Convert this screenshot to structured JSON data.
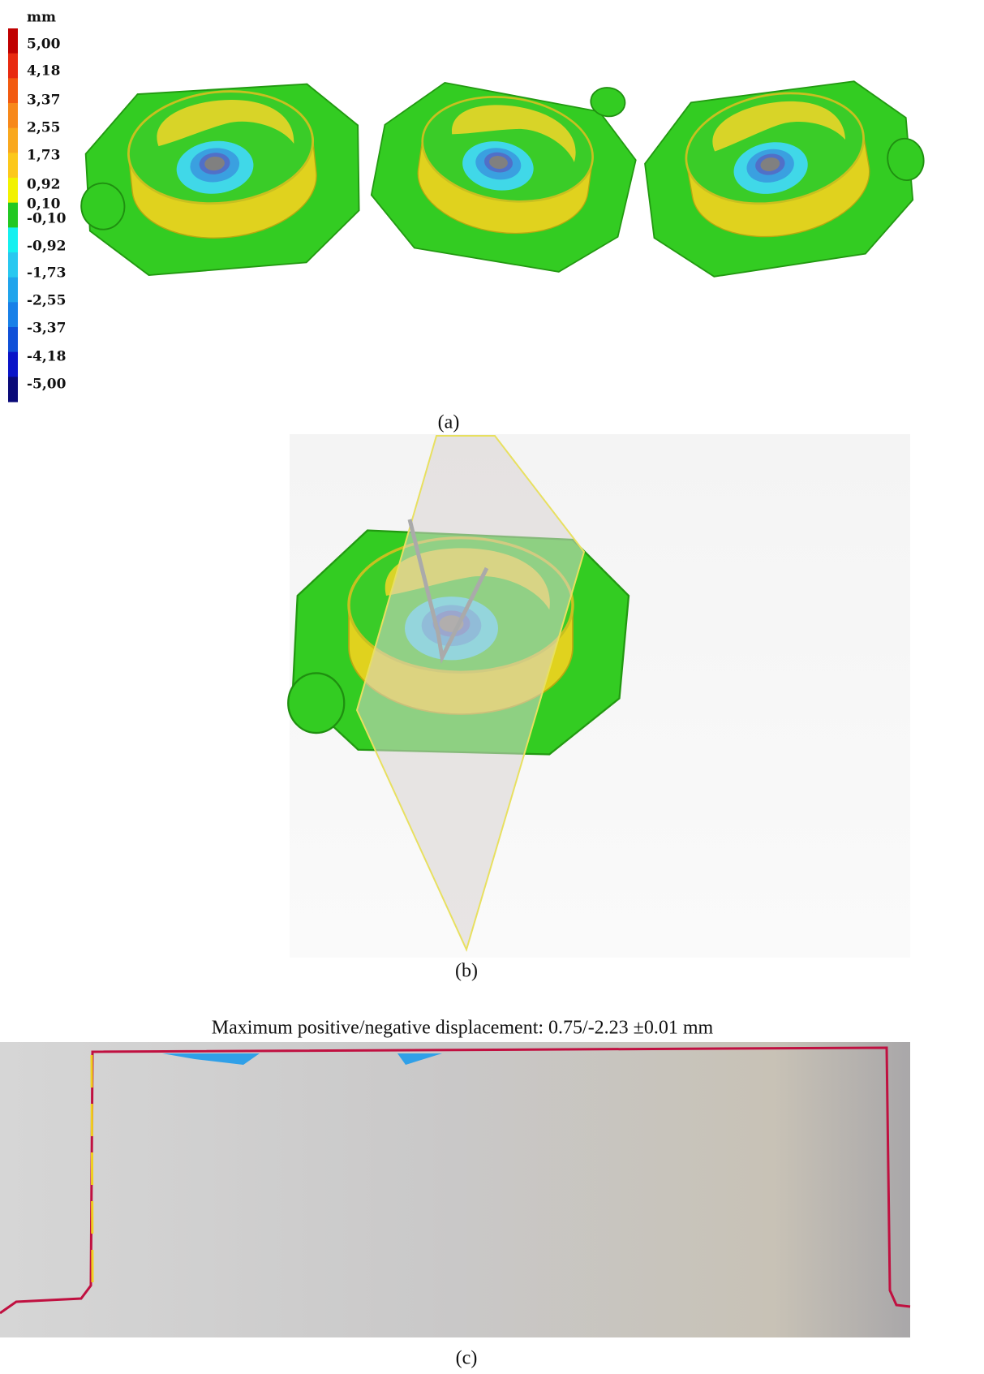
{
  "legend": {
    "unit": "mm",
    "labels": [
      "5,00",
      "4,18",
      "3,37",
      "2,55",
      "1,73",
      "0,92",
      "0,10",
      "-0,10",
      "-0,92",
      "-1,73",
      "-2,55",
      "-3,37",
      "-4,18",
      "-5,00"
    ],
    "colors": [
      "#c00000",
      "#e82a10",
      "#f25a10",
      "#f7881a",
      "#f9a81e",
      "#fcc81a",
      "#f2f200",
      "#22c822",
      "#14f0f0",
      "#28c8f0",
      "#20a4ec",
      "#1880e8",
      "#1050d8",
      "#0a14c8",
      "#0a0a78"
    ]
  },
  "panels": {
    "a": {
      "caption": "(a)"
    },
    "b": {
      "caption": "(b)"
    },
    "c": {
      "title": "Maximum positive/negative displacement: 0.75/-2.23 ±0.01 mm",
      "caption": "(c)"
    }
  }
}
